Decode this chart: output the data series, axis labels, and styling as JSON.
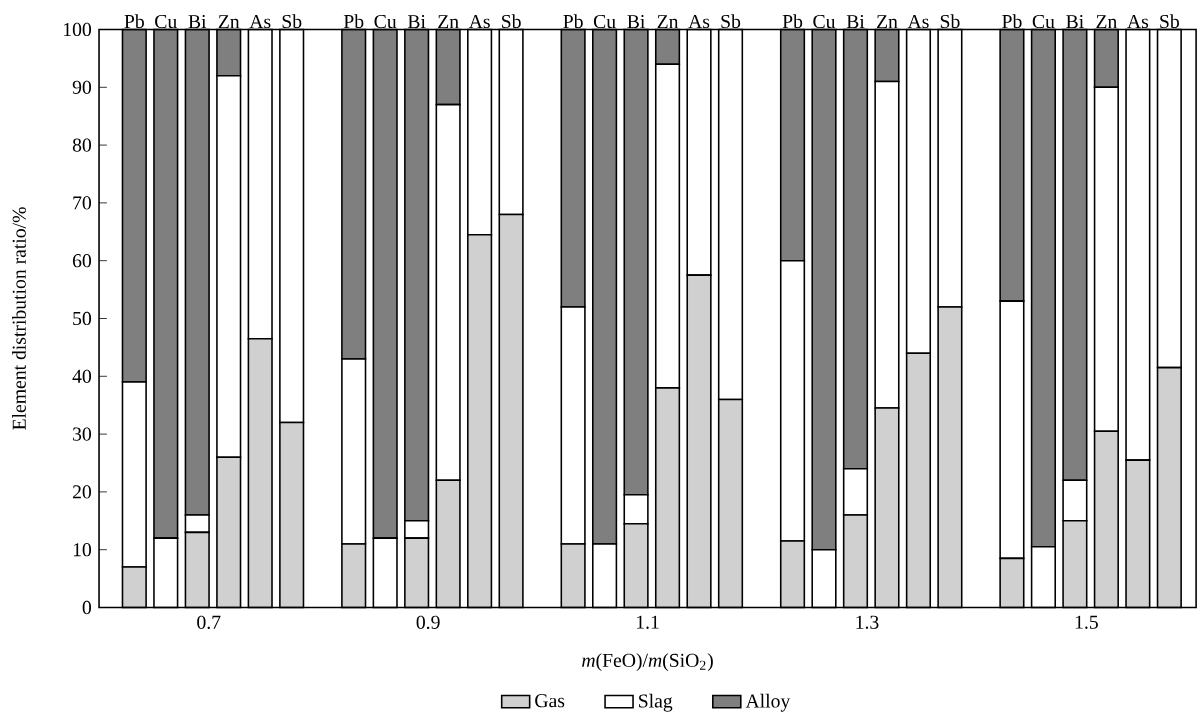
{
  "chart_data": [
    {
      "type": "bar",
      "stacked": true,
      "categories": [
        "Pb",
        "Cu",
        "Bi",
        "Zn",
        "As",
        "Sb"
      ],
      "xlabel": "0.7",
      "ylabel": "Element distribution ratio/%",
      "ylim": [
        0,
        100
      ],
      "yticks": [
        0,
        10,
        20,
        30,
        40,
        50,
        60,
        70,
        80,
        90,
        100
      ],
      "series": [
        {
          "color": "#d0d0d0",
          "values": [
            7,
            0,
            13,
            26,
            46.5,
            32
          ]
        },
        {
          "color": "#ffffff",
          "values": [
            32,
            12,
            3,
            66,
            53.5,
            68
          ]
        },
        {
          "color": "#7f7f7f",
          "values": [
            61,
            88,
            84,
            8,
            0,
            0
          ]
        }
      ]
    },
    {
      "type": "bar",
      "stacked": true,
      "categories": [
        "Pb",
        "Cu",
        "Bi",
        "Zn",
        "As",
        "Sb"
      ],
      "xlabel": "0.9",
      "ylim": [
        0,
        100
      ],
      "tick_labels": "x",
      "series": [
        {
          "color": "#d0d0d0",
          "values": [
            11,
            0,
            12,
            22,
            64.5,
            68
          ]
        },
        {
          "color": "#ffffff",
          "values": [
            32,
            12,
            3,
            65,
            35.5,
            32
          ]
        },
        {
          "color": "#7f7f7f",
          "values": [
            57,
            88,
            85,
            13,
            0,
            0
          ]
        }
      ]
    },
    {
      "type": "bar",
      "stacked": true,
      "categories": [
        "Pb",
        "Cu",
        "Bi",
        "Zn",
        "As",
        "Sb"
      ],
      "xlabel": "1.1",
      "ylim": [
        0,
        100
      ],
      "tick_labels": "x",
      "legend": "bottom",
      "annotations": [
        "*m*(FeO)/*m*(SiO$_{2}$)"
      ],
      "series": [
        {
          "name": "Gas",
          "color": "#d0d0d0",
          "values": [
            11,
            0,
            14.5,
            38,
            57.5,
            36
          ]
        },
        {
          "name": "Slag",
          "color": "#ffffff",
          "values": [
            41,
            11,
            5,
            56,
            42.5,
            64
          ]
        },
        {
          "name": "Alloy",
          "color": "#7f7f7f",
          "values": [
            48,
            89,
            80.5,
            6,
            0,
            0
          ]
        }
      ]
    },
    {
      "type": "bar",
      "stacked": true,
      "categories": [
        "Pb",
        "Cu",
        "Bi",
        "Zn",
        "As",
        "Sb"
      ],
      "xlabel": "1.3",
      "ylim": [
        0,
        100
      ],
      "tick_labels": "x",
      "series": [
        {
          "color": "#d0d0d0",
          "values": [
            11.5,
            0,
            16,
            34.5,
            44,
            52
          ]
        },
        {
          "color": "#ffffff",
          "values": [
            48.5,
            10,
            8,
            56.5,
            56,
            48
          ]
        },
        {
          "color": "#7f7f7f",
          "values": [
            40,
            90,
            76,
            9,
            0,
            0
          ]
        }
      ]
    },
    {
      "type": "bar",
      "stacked": true,
      "categories": [
        "Pb",
        "Cu",
        "Bi",
        "Zn",
        "As",
        "Sb"
      ],
      "xlabel": "1.5",
      "ylim": [
        0,
        100
      ],
      "tick_labels": "x",
      "series": [
        {
          "color": "#d0d0d0",
          "values": [
            8.5,
            0,
            15,
            30.5,
            25.5,
            41.5
          ]
        },
        {
          "color": "#ffffff",
          "values": [
            44.5,
            10.5,
            7,
            59.5,
            74.5,
            58.5
          ]
        },
        {
          "color": "#7f7f7f",
          "values": [
            47,
            89.5,
            78,
            10,
            0,
            0
          ]
        }
      ]
    }
  ]
}
